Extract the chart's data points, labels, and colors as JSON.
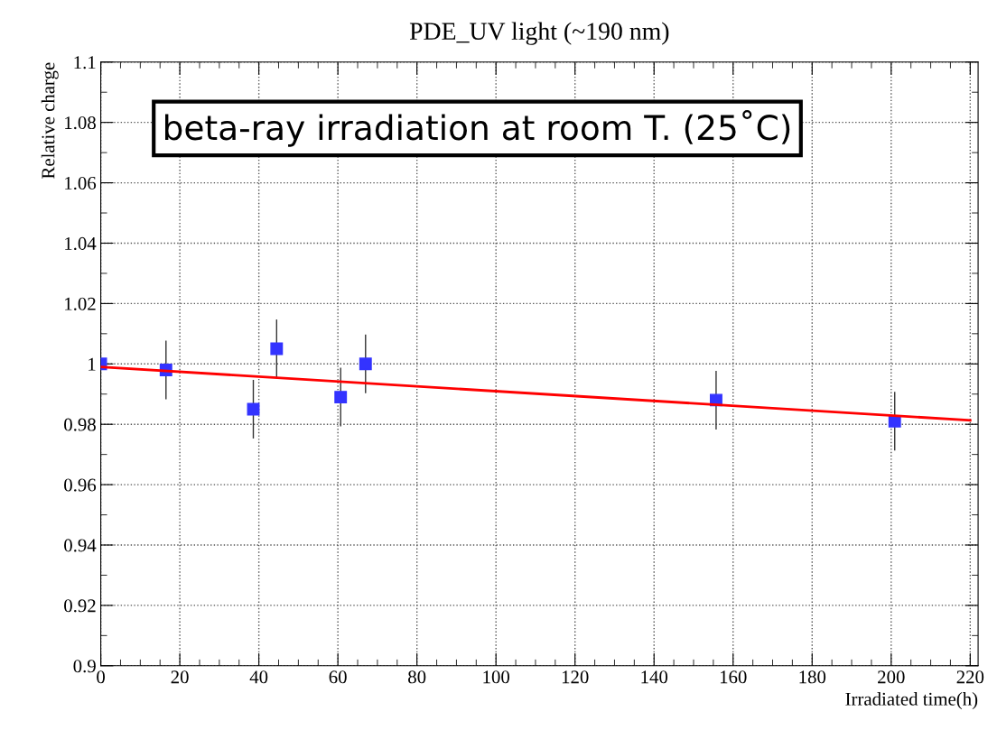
{
  "chart_data": {
    "type": "scatter",
    "title": "PDE_UV light (~190 nm)",
    "xlabel": "Irradiated time(h)",
    "ylabel": "Relative charge",
    "annotations": [
      "beta-ray irradiation at room T. (25˚C)"
    ],
    "series": [
      {
        "color": "#3333ff",
        "marker": "square",
        "x": [
          0,
          16.5,
          38.6,
          44.5,
          60.7,
          67,
          155.7,
          200.9
        ],
        "values": [
          1,
          0.998,
          0.985,
          1.005,
          0.989,
          1,
          0.988,
          0.981
        ],
        "errors": [
          null,
          0.0095,
          0.0095,
          0.0095,
          0.0095,
          0.0095,
          0.0095,
          0.0095
        ]
      },
      {
        "type": "line",
        "color": "#ff0000",
        "marker": "none",
        "line_style": "solid",
        "x": [
          0,
          220
        ],
        "values": [
          0.999,
          0.9813
        ]
      }
    ],
    "xlim": [
      0,
      222
    ],
    "ylim": [
      0.9,
      1.1
    ],
    "xticks": [
      0,
      20,
      40,
      60,
      80,
      100,
      120,
      140,
      160,
      180,
      200,
      220
    ],
    "yticks": [
      0.9,
      0.92,
      0.94,
      0.96,
      0.98,
      1,
      1.02,
      1.04,
      1.06,
      1.08,
      1.1
    ],
    "grid": true,
    "legend": false
  }
}
